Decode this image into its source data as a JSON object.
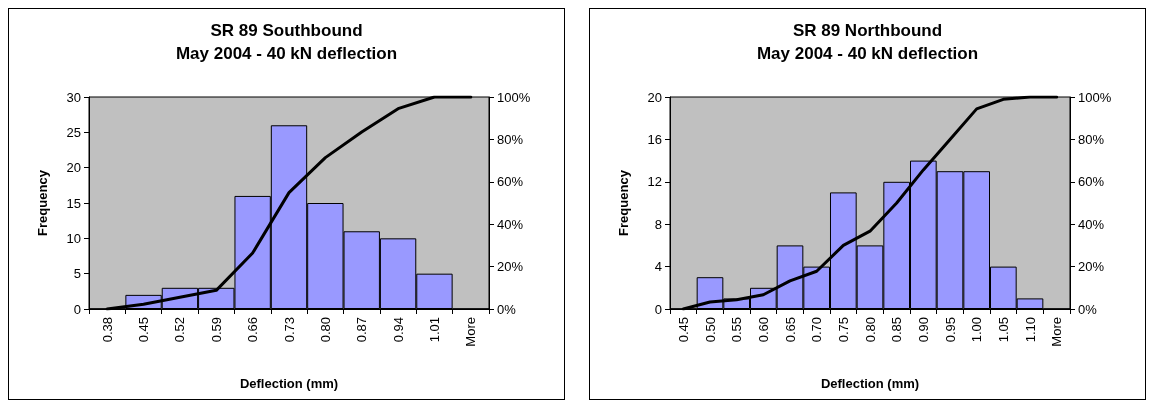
{
  "chart_data": [
    {
      "type": "bar",
      "title": "SR 89 Southbound",
      "subtitle": "May 2004 - 40 kN deflection",
      "xlabel": "Deflection (mm)",
      "ylabel": "Frequency",
      "categories": [
        "0.38",
        "0.45",
        "0.52",
        "0.59",
        "0.66",
        "0.73",
        "0.80",
        "0.87",
        "0.94",
        "1.01",
        "More"
      ],
      "series": [
        {
          "color": "#9999ff",
          "values": [
            0,
            2,
            3,
            3,
            16,
            26,
            15,
            11,
            10,
            5,
            0
          ]
        },
        {
          "type": "line",
          "axis": "y2",
          "color": "#000000",
          "values": [
            0,
            2.2,
            5.5,
            8.8,
            26.4,
            54.9,
            71.4,
            83.5,
            94.5,
            100,
            100
          ]
        }
      ],
      "ylim": [
        0,
        30
      ],
      "yticks": [
        0,
        5,
        10,
        15,
        20,
        25,
        30
      ],
      "y2lim": [
        0,
        100
      ],
      "y2ticks": [
        {
          "value": 0,
          "label": "0%"
        },
        {
          "value": 20,
          "label": "20%"
        },
        {
          "value": 40,
          "label": "40%"
        },
        {
          "value": 60,
          "label": "60%"
        },
        {
          "value": 80,
          "label": "80%"
        },
        {
          "value": 100,
          "label": "100%"
        }
      ],
      "grid": false,
      "marker": "none",
      "line_style": "solid"
    },
    {
      "type": "bar",
      "title": "SR 89 Northbound",
      "subtitle": "May 2004 - 40 kN deflection",
      "xlabel": "Deflection (mm)",
      "ylabel": "Frequency",
      "categories": [
        "0.45",
        "0.50",
        "0.55",
        "0.60",
        "0.65",
        "0.70",
        "0.75",
        "0.80",
        "0.85",
        "0.90",
        "0.95",
        "1.00",
        "1.05",
        "1.10",
        "More"
      ],
      "series": [
        {
          "color": "#9999ff",
          "values": [
            0,
            3,
            1,
            2,
            6,
            4,
            11,
            6,
            12,
            14,
            13,
            13,
            4,
            1,
            0
          ]
        },
        {
          "type": "line",
          "axis": "y2",
          "color": "#000000",
          "values": [
            0,
            3.3,
            4.4,
            6.7,
            13.3,
            17.8,
            30,
            36.7,
            50,
            65.6,
            80,
            94.4,
            98.9,
            100,
            100
          ]
        }
      ],
      "ylim": [
        0,
        20
      ],
      "yticks": [
        0,
        4,
        8,
        12,
        16,
        20
      ],
      "y2lim": [
        0,
        100
      ],
      "y2ticks": [
        {
          "value": 0,
          "label": "0%"
        },
        {
          "value": 20,
          "label": "20%"
        },
        {
          "value": 40,
          "label": "40%"
        },
        {
          "value": 60,
          "label": "60%"
        },
        {
          "value": 80,
          "label": "80%"
        },
        {
          "value": 100,
          "label": "100%"
        }
      ],
      "grid": false,
      "marker": "none",
      "line_style": "solid"
    }
  ]
}
